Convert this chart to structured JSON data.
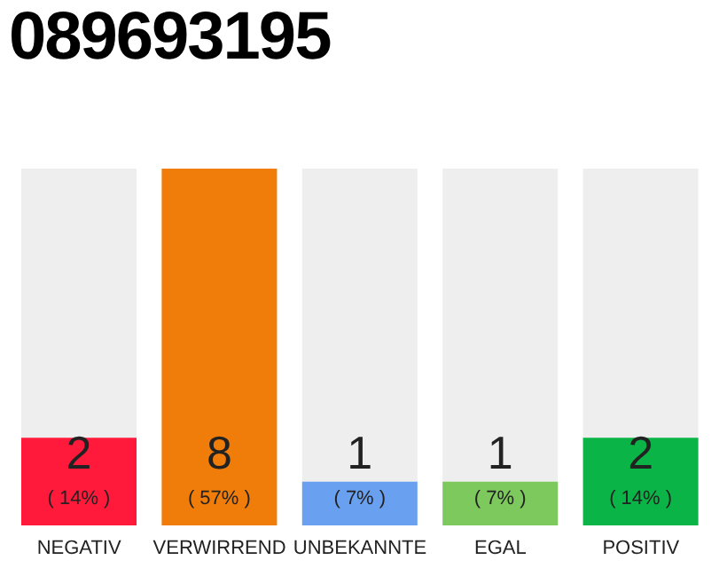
{
  "chart_data": {
    "type": "bar",
    "title": "089693195",
    "categories": [
      "NEGATIV",
      "VERWIRREND",
      "UNBEKANNTE",
      "EGAL",
      "POSITIV"
    ],
    "values": [
      14,
      57,
      7,
      7,
      14
    ],
    "colors": [
      "#ff1a3c",
      "#f07d0a",
      "#6aa0f0",
      "#7dc95e",
      "#0ab446"
    ],
    "value_labels": [
      "( 14% )",
      "( 57% )",
      "( 7% )",
      "( 7% )",
      "( 14% )"
    ],
    "annotations": [
      "2",
      "8",
      "1",
      "1",
      "2"
    ]
  }
}
